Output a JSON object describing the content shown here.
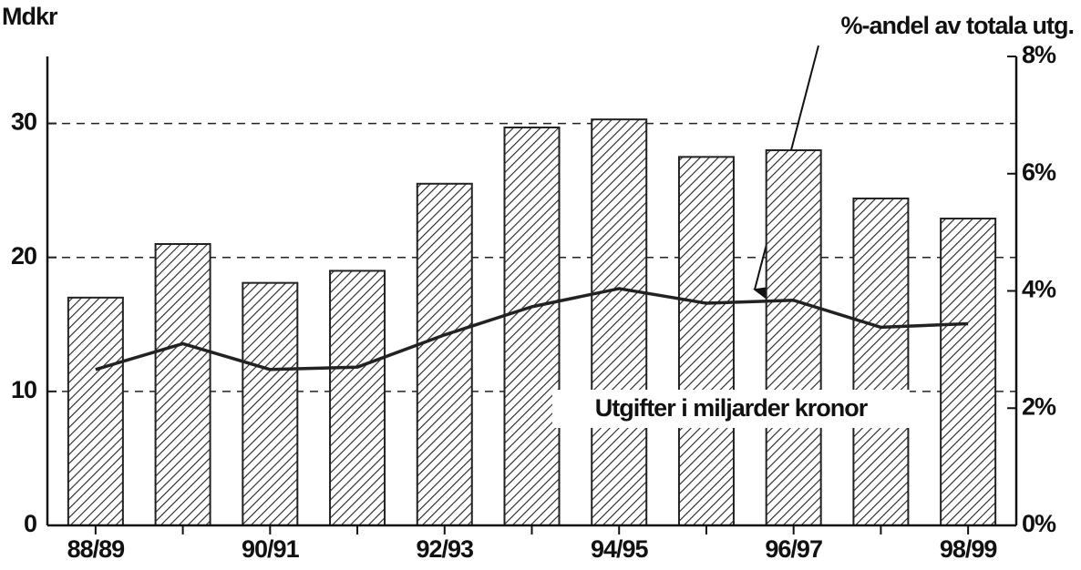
{
  "chart_data": {
    "type": "bar",
    "y_axis_label": "Mdkr",
    "annotations": [
      "%-andel av totala utg.",
      "Utgifter i miljarder kronor"
    ],
    "categories": [
      "88/89",
      null,
      "90/91",
      null,
      "92/93",
      null,
      "94/95",
      null,
      "96/97",
      null,
      "98/99"
    ],
    "series": [
      {
        "type": "bar",
        "color": "#222222",
        "values": [
          17,
          21,
          18.1,
          19,
          25.5,
          29.7,
          30.3,
          27.5,
          28,
          24.4,
          22.9
        ]
      },
      {
        "type": "line",
        "axis": "y2",
        "color": "#222222",
        "values": [
          2.66,
          3.1,
          2.66,
          2.7,
          3.25,
          3.73,
          4.04,
          3.79,
          3.84,
          3.38,
          3.44
        ]
      }
    ],
    "ylim": [
      0,
      35
    ],
    "yticks": [
      0,
      10,
      20,
      30
    ],
    "y2lim": [
      0,
      8
    ],
    "y2ticks": [
      {
        "value": 0,
        "label": "0%"
      },
      {
        "value": 2,
        "label": "2%"
      },
      {
        "value": 4,
        "label": "4%"
      },
      {
        "value": 6,
        "label": "6%"
      },
      {
        "value": 8,
        "label": "8%"
      }
    ],
    "grid": true
  }
}
